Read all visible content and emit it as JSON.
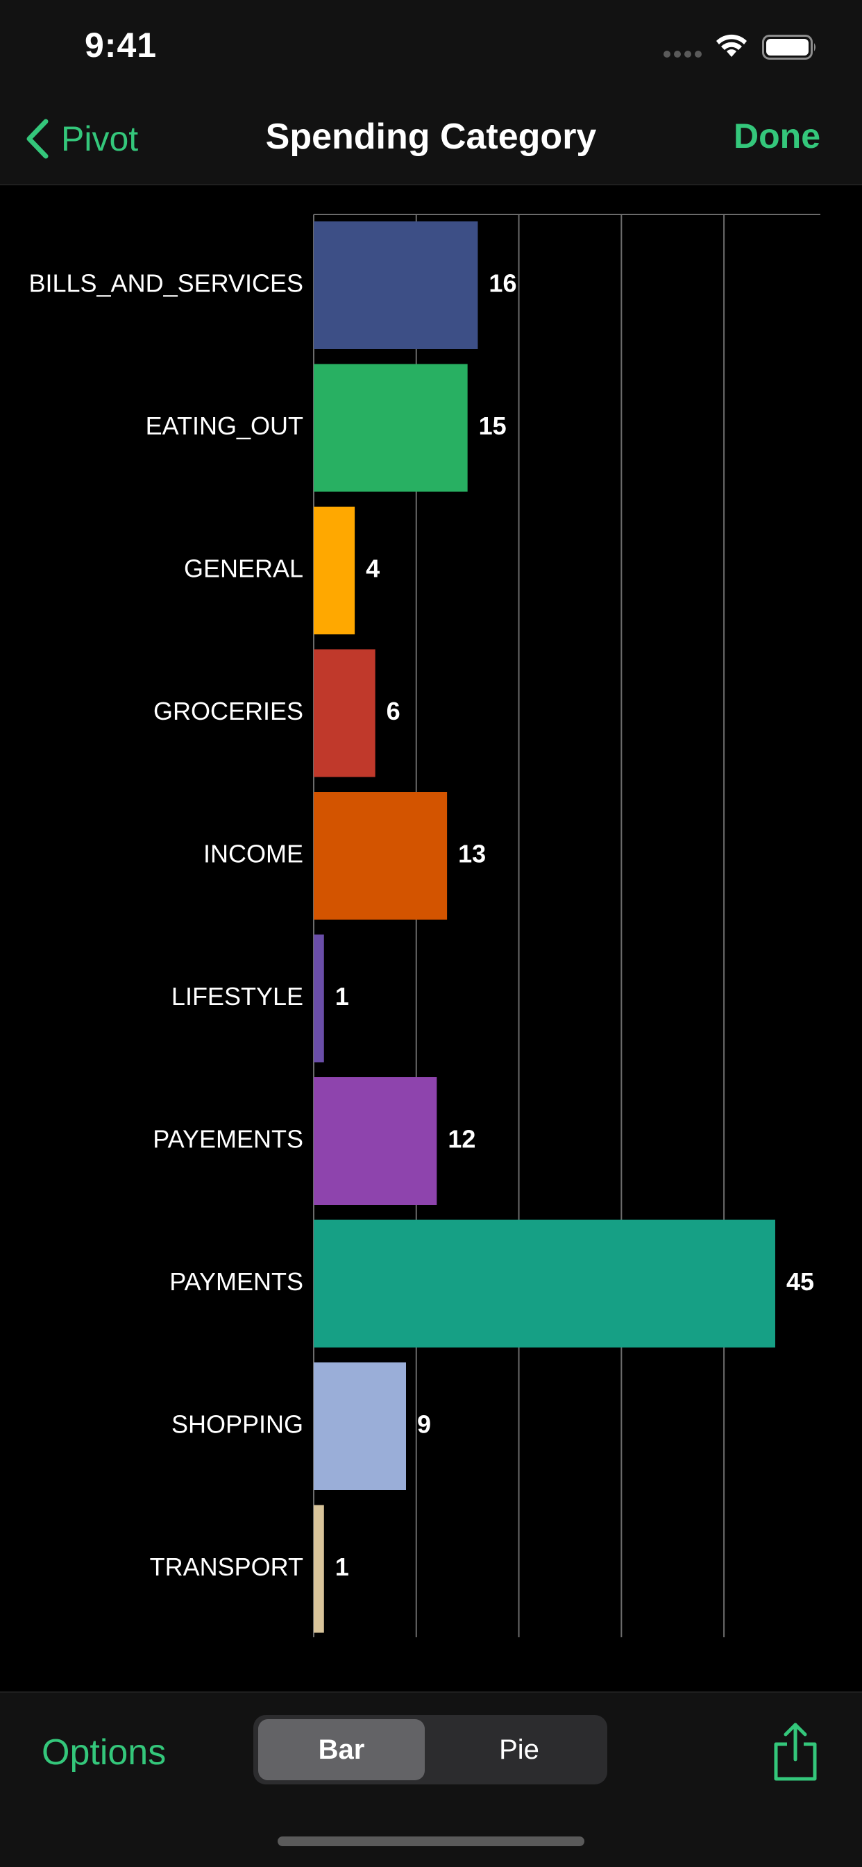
{
  "status_bar": {
    "time": "9:41",
    "icons": [
      "cellular-signal-icon",
      "wifi-icon",
      "battery-icon"
    ]
  },
  "nav": {
    "back_label": "Pivot",
    "title": "Spending Category",
    "done_label": "Done",
    "accent_color": "#34c77b"
  },
  "chart_data": {
    "type": "bar",
    "orientation": "horizontal",
    "categories": [
      "BILLS_AND_SERVICES",
      "EATING_OUT",
      "GENERAL",
      "GROCERIES",
      "INCOME",
      "LIFESTYLE",
      "PAYEMENTS",
      "PAYMENTS",
      "SHOPPING",
      "TRANSPORT"
    ],
    "values": [
      16,
      15,
      4,
      6,
      13,
      1,
      12,
      45,
      9,
      1
    ],
    "colors": [
      "#3d4f86",
      "#28b062",
      "#ffa800",
      "#c0392b",
      "#d35400",
      "#6a4ea8",
      "#8e44ad",
      "#16a085",
      "#9aaed8",
      "#d8c49a"
    ],
    "xlim": [
      0,
      49.4
    ],
    "gridlines": [
      0,
      10,
      20,
      30,
      40
    ],
    "grid": true,
    "data_labels": true
  },
  "toolbar": {
    "options_label": "Options",
    "segments": [
      {
        "label": "Bar",
        "selected": true
      },
      {
        "label": "Pie",
        "selected": false
      }
    ],
    "share_icon": "share-icon"
  }
}
